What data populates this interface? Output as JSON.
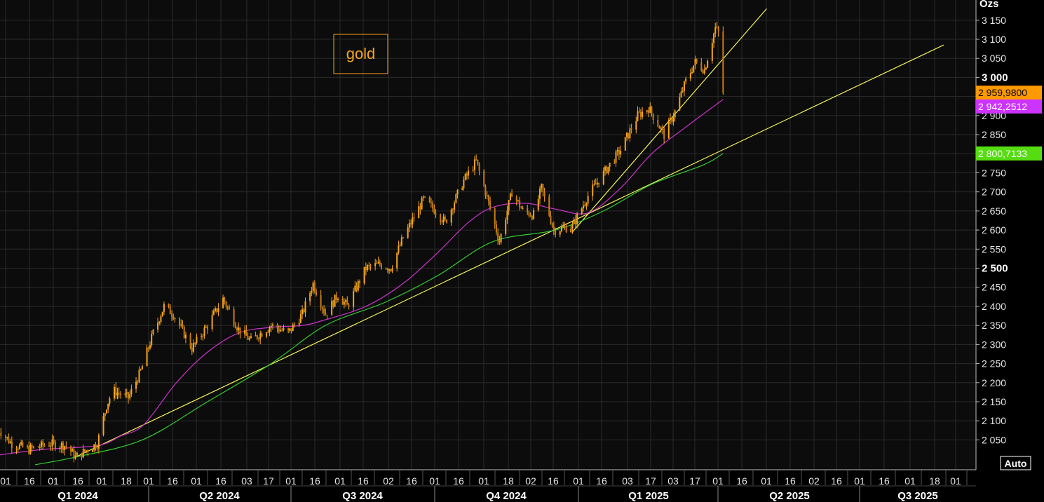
{
  "chart_data": {
    "type": "candlestick",
    "unit_label": "Ozs",
    "legend_label": "gold",
    "colors": {
      "background": "#000000",
      "grid": "#2a2a2a",
      "price": "#f7a51d",
      "ma_short": "#cc33cc",
      "ma_long": "#33cc33",
      "trendline": "#f2f25a",
      "price_badge": "#ff9900",
      "ma_short_badge": "#cc33ff",
      "ma_long_badge": "#55dd11"
    },
    "ylim": [
      1985,
      3175
    ],
    "y_ticks": [
      "2 050",
      "2 100",
      "2 150",
      "2 200",
      "2 250",
      "2 300",
      "2 350",
      "2 400",
      "2 450",
      "2 500",
      "2 550",
      "2 600",
      "2 650",
      "2 700",
      "2 750",
      "2 800",
      "2 850",
      "2 900",
      "2 950",
      "3 000",
      "3 050",
      "3 100",
      "3 150"
    ],
    "y_ticks_major": [
      "2 500",
      "3 000"
    ],
    "x_ticks": [
      "01",
      "16",
      "01",
      "16",
      "01",
      "18",
      "01",
      "16",
      "01",
      "16",
      "03",
      "17",
      "01",
      "16",
      "01",
      "16",
      "02",
      "16",
      "01",
      "16",
      "01",
      "18",
      "02",
      "16",
      "01",
      "16",
      "03",
      "17",
      "03",
      "17",
      "01",
      "16",
      "01",
      "16",
      "02",
      "16",
      "01",
      "16",
      "01",
      "18",
      "01"
    ],
    "quarters": [
      "Q1 2024",
      "Q2 2024",
      "Q3 2024",
      "Q4 2024",
      "Q1 2025",
      "Q2 2025",
      "Q3 2025"
    ],
    "last_values": {
      "price": "2 959,9800",
      "ma_short": "2 942,2512",
      "ma_long": "2 800,7133"
    },
    "series": [
      {
        "type": "candlestick",
        "anchors": [
          [
            "2023-12-27",
            2080
          ],
          [
            "2024-01-05",
            2040
          ],
          [
            "2024-01-16",
            2025
          ],
          [
            "2024-01-29",
            2040
          ],
          [
            "2024-02-09",
            2035
          ],
          [
            "2024-02-15",
            2005
          ],
          [
            "2024-02-29",
            2040
          ],
          [
            "2024-03-06",
            2140
          ],
          [
            "2024-03-10",
            2180
          ],
          [
            "2024-03-20",
            2160
          ],
          [
            "2024-03-28",
            2230
          ],
          [
            "2024-04-05",
            2330
          ],
          [
            "2024-04-12",
            2400
          ],
          [
            "2024-04-18",
            2380
          ],
          [
            "2024-04-30",
            2290
          ],
          [
            "2024-05-10",
            2350
          ],
          [
            "2024-05-20",
            2420
          ],
          [
            "2024-05-30",
            2340
          ],
          [
            "2024-06-07",
            2310
          ],
          [
            "2024-06-20",
            2350
          ],
          [
            "2024-07-01",
            2330
          ],
          [
            "2024-07-10",
            2380
          ],
          [
            "2024-07-17",
            2460
          ],
          [
            "2024-07-25",
            2380
          ],
          [
            "2024-08-02",
            2430
          ],
          [
            "2024-08-08",
            2400
          ],
          [
            "2024-08-20",
            2500
          ],
          [
            "2024-08-29",
            2510
          ],
          [
            "2024-09-05",
            2500
          ],
          [
            "2024-09-13",
            2580
          ],
          [
            "2024-09-26",
            2680
          ],
          [
            "2024-10-04",
            2650
          ],
          [
            "2024-10-10",
            2620
          ],
          [
            "2024-10-22",
            2730
          ],
          [
            "2024-10-30",
            2780
          ],
          [
            "2024-11-05",
            2700
          ],
          [
            "2024-11-14",
            2570
          ],
          [
            "2024-11-22",
            2700
          ],
          [
            "2024-11-29",
            2650
          ],
          [
            "2024-12-06",
            2640
          ],
          [
            "2024-12-11",
            2710
          ],
          [
            "2024-12-19",
            2600
          ],
          [
            "2024-12-31",
            2610
          ],
          [
            "2025-01-10",
            2690
          ],
          [
            "2025-01-22",
            2760
          ],
          [
            "2025-01-31",
            2810
          ],
          [
            "2025-02-11",
            2900
          ],
          [
            "2025-02-18",
            2920
          ],
          [
            "2025-02-28",
            2850
          ],
          [
            "2025-03-07",
            2910
          ],
          [
            "2025-03-14",
            2990
          ],
          [
            "2025-03-20",
            3040
          ],
          [
            "2025-03-26",
            3020
          ],
          [
            "2025-04-02",
            3130
          ],
          [
            "2025-04-05",
            3110
          ],
          [
            "2025-04-07",
            2960
          ]
        ]
      },
      {
        "type": "line",
        "anchors": [
          [
            "2023-12-27",
            2010
          ],
          [
            "2024-01-25",
            2025
          ],
          [
            "2024-02-29",
            2035
          ],
          [
            "2024-03-15",
            2060
          ],
          [
            "2024-03-30",
            2090
          ],
          [
            "2024-04-20",
            2200
          ],
          [
            "2024-05-10",
            2280
          ],
          [
            "2024-05-30",
            2330
          ],
          [
            "2024-06-20",
            2345
          ],
          [
            "2024-07-10",
            2350
          ],
          [
            "2024-07-25",
            2365
          ],
          [
            "2024-08-20",
            2400
          ],
          [
            "2024-09-13",
            2460
          ],
          [
            "2024-10-05",
            2540
          ],
          [
            "2024-10-25",
            2620
          ],
          [
            "2024-11-10",
            2660
          ],
          [
            "2024-12-01",
            2670
          ],
          [
            "2024-12-20",
            2655
          ],
          [
            "2025-01-10",
            2645
          ],
          [
            "2025-01-31",
            2710
          ],
          [
            "2025-02-20",
            2800
          ],
          [
            "2025-03-14",
            2870
          ],
          [
            "2025-04-07",
            2942.25
          ]
        ]
      },
      {
        "type": "line",
        "anchors": [
          [
            "2024-01-20",
            1985
          ],
          [
            "2024-02-15",
            2005
          ],
          [
            "2024-03-29",
            2050
          ],
          [
            "2024-05-10",
            2150
          ],
          [
            "2024-06-20",
            2250
          ],
          [
            "2024-07-25",
            2350
          ],
          [
            "2024-09-01",
            2410
          ],
          [
            "2024-10-05",
            2480
          ],
          [
            "2024-11-10",
            2570
          ],
          [
            "2024-12-20",
            2600
          ],
          [
            "2025-01-20",
            2650
          ],
          [
            "2025-02-20",
            2720
          ],
          [
            "2025-03-25",
            2770
          ],
          [
            "2025-04-07",
            2800.71
          ]
        ]
      },
      {
        "type": "line",
        "anchors": [
          [
            "2024-02-15",
            2005
          ],
          [
            "2025-08-27",
            3085
          ]
        ]
      },
      {
        "type": "line",
        "anchors": [
          [
            "2024-12-31",
            2595
          ],
          [
            "2025-05-05",
            3180
          ]
        ]
      }
    ]
  },
  "controls": {
    "auto_label": "Auto"
  }
}
